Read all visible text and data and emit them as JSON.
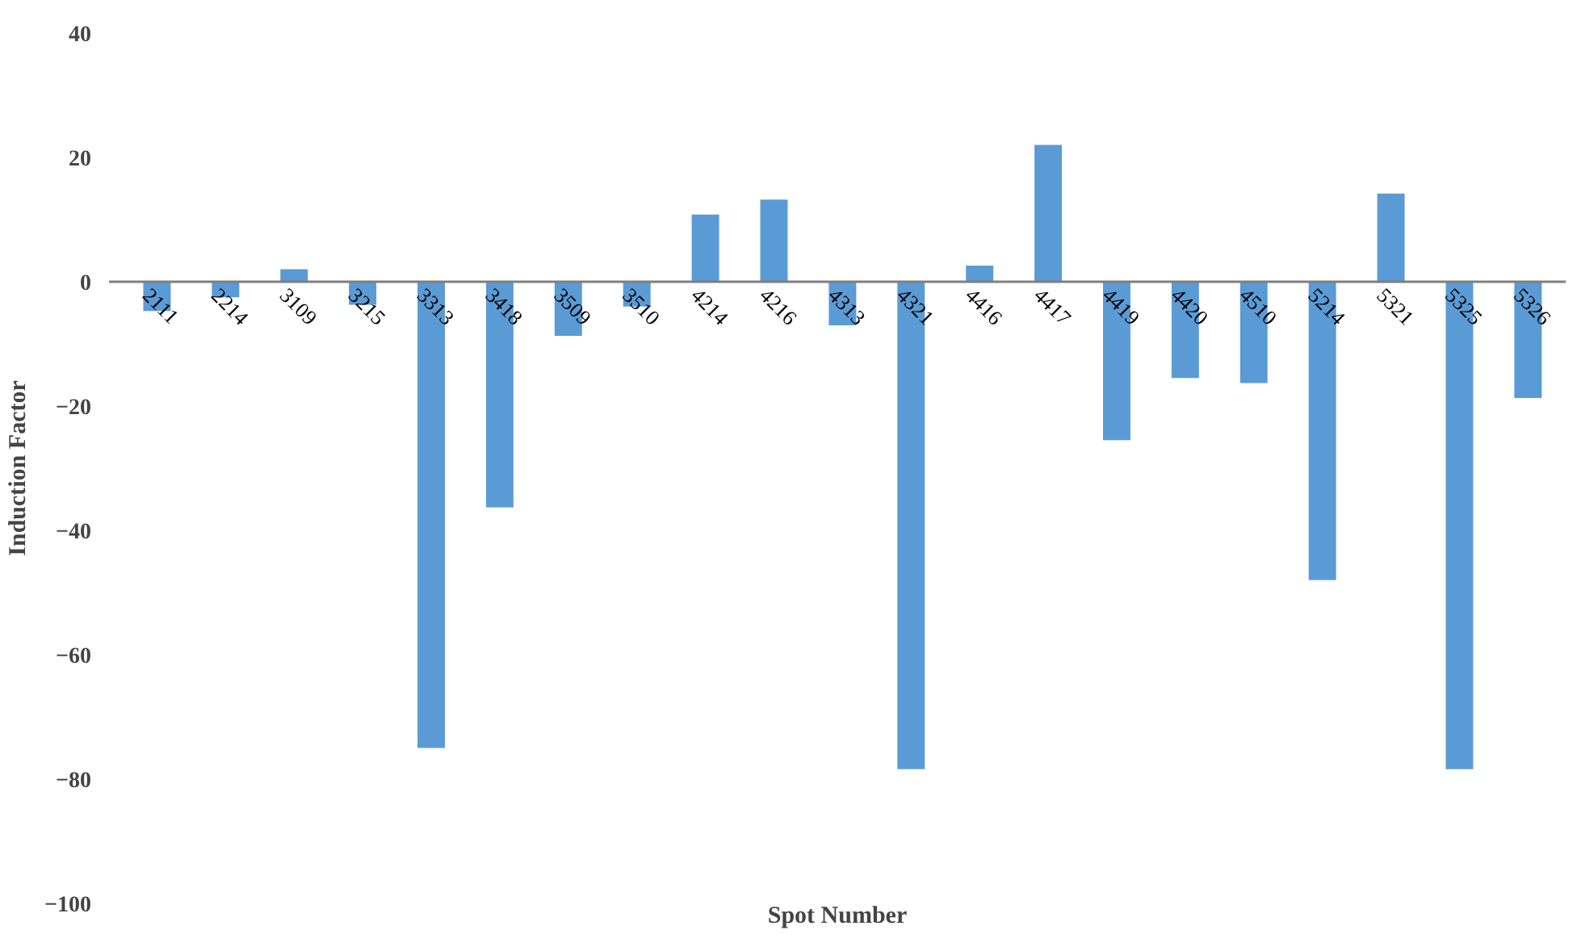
{
  "chart_data": {
    "type": "bar",
    "xlabel": "Spot Number",
    "ylabel": "Induction Factor",
    "categories": [
      "2111",
      "2214",
      "3109",
      "3215",
      "3313",
      "3418",
      "3509",
      "3510",
      "4214",
      "4216",
      "4313",
      "4321",
      "4416",
      "4417",
      "4419",
      "4420",
      "4510",
      "5214",
      "5321",
      "5325",
      "5326"
    ],
    "series": [
      {
        "color": "#5b9bd5",
        "values": [
          -4.7,
          -2.5,
          2,
          -3.7,
          -75,
          -36.3,
          -8.7,
          -4,
          10.8,
          13.2,
          -7,
          -78.4,
          2.6,
          22,
          -25.5,
          -15.5,
          -16.3,
          -48,
          14.2,
          -78.4,
          -18.7
        ]
      }
    ],
    "ylim": [
      -100,
      40
    ],
    "yticks": [
      -100,
      -80,
      -60,
      -40,
      -20,
      0,
      20,
      40
    ],
    "grid": false
  }
}
